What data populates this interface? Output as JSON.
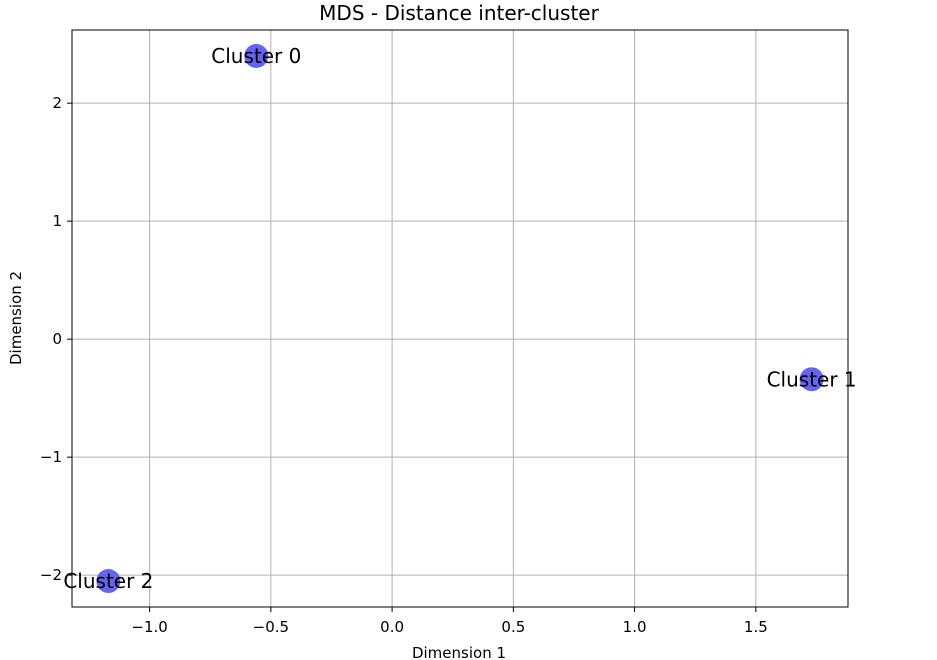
{
  "chart_data": {
    "type": "scatter",
    "title": "MDS - Distance inter-cluster",
    "xlabel": "Dimension 1",
    "ylabel": "Dimension 2",
    "xlim": [
      -1.32,
      1.88
    ],
    "ylim": [
      -2.27,
      2.62
    ],
    "grid": true,
    "x_ticks": [
      {
        "value": -1.0,
        "label": "−1.0"
      },
      {
        "value": -0.5,
        "label": "−0.5"
      },
      {
        "value": 0.0,
        "label": "0.0"
      },
      {
        "value": 0.5,
        "label": "0.5"
      },
      {
        "value": 1.0,
        "label": "1.0"
      },
      {
        "value": 1.5,
        "label": "1.5"
      }
    ],
    "y_ticks": [
      {
        "value": -2,
        "label": "−2"
      },
      {
        "value": -1,
        "label": "−1"
      },
      {
        "value": 0,
        "label": "0"
      },
      {
        "value": 1,
        "label": "1"
      },
      {
        "value": 2,
        "label": "2"
      }
    ],
    "marker_color": "#6464f0",
    "points": [
      {
        "label": "Cluster 0",
        "x": -0.56,
        "y": 2.4
      },
      {
        "label": "Cluster 1",
        "x": 1.73,
        "y": -0.34
      },
      {
        "label": "Cluster 2",
        "x": -1.17,
        "y": -2.05
      }
    ]
  }
}
